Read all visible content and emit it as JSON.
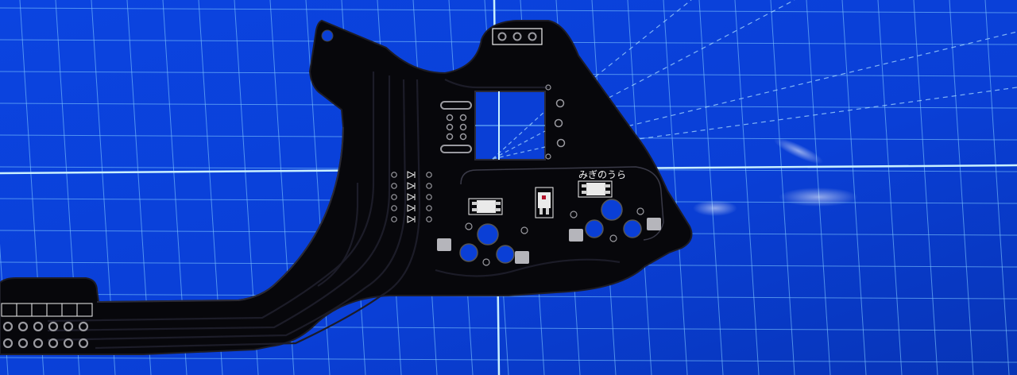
{
  "photo": {
    "subject": "",
    "colors": {
      "mat": "#0a3fd6",
      "mat_dark": "#0636b8",
      "grid": "#7fc7ff",
      "grid_major": "#c9f0ff",
      "pcb": "#07070b",
      "pcb_edge": "#1d1d26",
      "silk": "#f2f2f2",
      "pad": "#9a9aa0",
      "trace": "#1a1a22"
    }
  },
  "pcb": {
    "silkscreen_label": "みぎのうら"
  }
}
